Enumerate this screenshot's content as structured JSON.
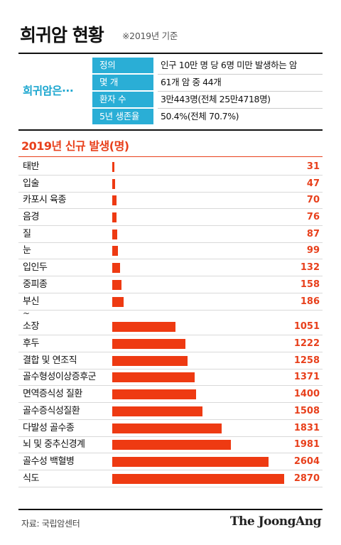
{
  "header": {
    "title": "희귀암 현황",
    "basis": "※2019년 기준"
  },
  "summary": {
    "label": "희귀암은···",
    "rows": [
      {
        "key": "정의",
        "value": "인구 10만 명 당 6명 미만 발생하는 암"
      },
      {
        "key": "몇 개",
        "value": "61개 암 중 44개"
      },
      {
        "key": "환자 수",
        "value": "3만443명(전체 25만4718명)"
      },
      {
        "key": "5년 생존율",
        "value": "50.4%(전체 70.7%)"
      }
    ]
  },
  "chart_data": {
    "type": "bar",
    "orientation": "horizontal",
    "title": "2019년 신규 발생(명)",
    "axis_break_after": "부신",
    "axis_break_mark": "~",
    "categories": [
      "태반",
      "입술",
      "카포시 육종",
      "음경",
      "질",
      "눈",
      "입인두",
      "중피종",
      "부신",
      "소장",
      "후두",
      "결합 및 연조직",
      "골수형성이상증후군",
      "면역증식성 질환",
      "골수증식성질환",
      "다발성 골수종",
      "뇌 및 중추신경계",
      "골수성 백혈병",
      "식도"
    ],
    "values": [
      31,
      47,
      70,
      76,
      87,
      99,
      132,
      158,
      186,
      1051,
      1222,
      1258,
      1371,
      1400,
      1508,
      1831,
      1981,
      2604,
      2870
    ],
    "value_labels": [
      "31",
      "47",
      "70",
      "76",
      "87",
      "99",
      "132",
      "158",
      "186",
      "1051",
      "1222",
      "1258",
      "1371",
      "1400",
      "1508",
      "1831",
      "1981",
      "2604",
      "2870"
    ],
    "bar_color": "#ee3a12",
    "label_color": "#e8401c"
  },
  "footer": {
    "source": "자료: 국립암센터",
    "brand": "The JoongAng"
  }
}
